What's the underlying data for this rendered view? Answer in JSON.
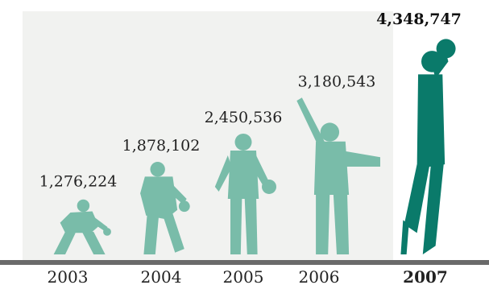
{
  "chart_data": {
    "type": "bar",
    "categories": [
      "2003",
      "2004",
      "2005",
      "2006",
      "2007"
    ],
    "values": [
      1276224,
      1878102,
      2450536,
      3180543,
      4348747
    ],
    "value_labels": [
      "1,276,224",
      "1,878,102",
      "2,450,536",
      "3,180,543",
      "4,348,747"
    ],
    "highlight_category": "2007",
    "title": "",
    "xlabel": "",
    "ylabel": "",
    "ylim": [
      0,
      4500000
    ],
    "grid": false,
    "legend": "none",
    "marks": "silhouette-figures"
  },
  "colors": {
    "figure_faded": "#6fb8a4",
    "figure_highlight": "#0a7a6a",
    "background_panel": "#f1f2f0",
    "axis": "#6a6a6a",
    "text": "#222222"
  }
}
